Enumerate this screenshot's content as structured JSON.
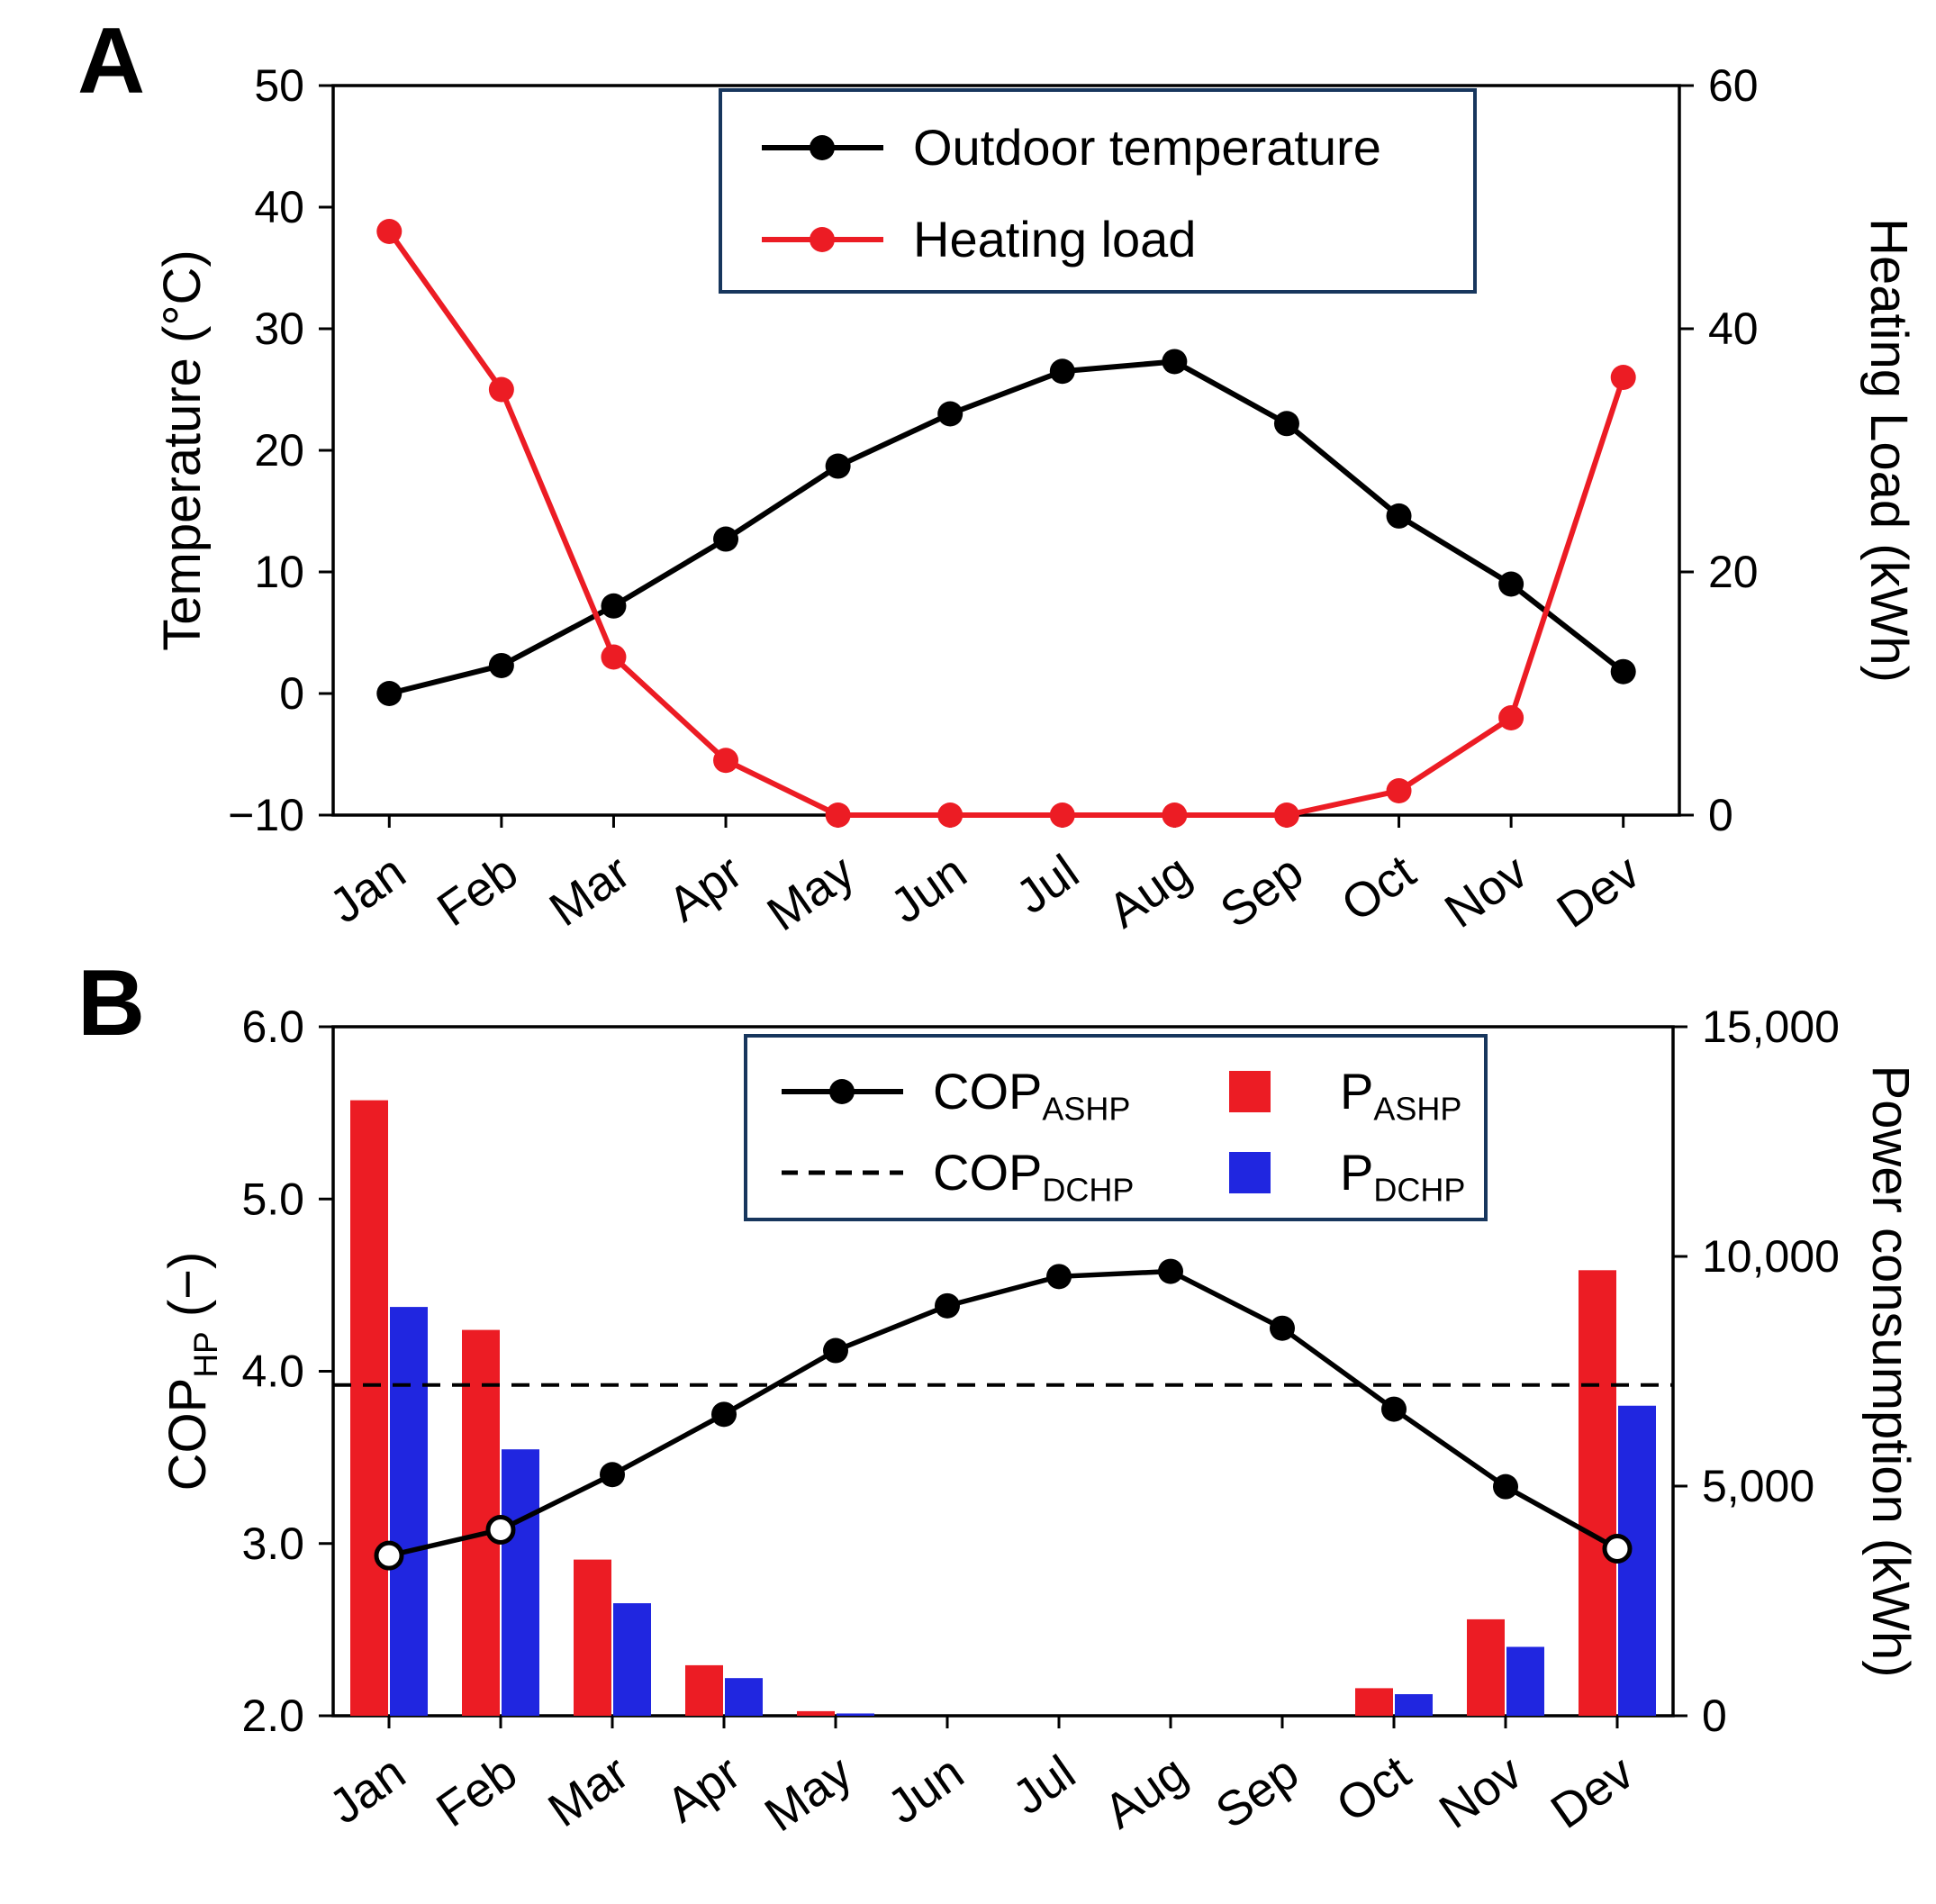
{
  "figure": {
    "background": "#ffffff",
    "legend_border": "#17365d"
  },
  "chart_data": [
    {
      "type": "line",
      "panel_label": "A",
      "categories": [
        "Jan",
        "Feb",
        "Mar",
        "Apr",
        "May",
        "Jun",
        "Jul",
        "Aug",
        "Sep",
        "Oct",
        "Nov",
        "Dev"
      ],
      "left_axis": {
        "title_parts": [
          {
            "t": "Temperature (°C)"
          }
        ],
        "min": -10,
        "max": 50,
        "ticks": [
          {
            "v": 50,
            "label": "50"
          },
          {
            "v": 40,
            "label": "40"
          },
          {
            "v": 30,
            "label": "30"
          },
          {
            "v": 20,
            "label": "20"
          },
          {
            "v": 10,
            "label": "10"
          },
          {
            "v": 0,
            "label": "0"
          },
          {
            "v": -10,
            "label": "−10"
          }
        ]
      },
      "right_axis": {
        "title_parts": [
          {
            "t": "Heating Load (kWh)"
          }
        ],
        "min": 0,
        "max": 60,
        "ticks": [
          {
            "v": 60,
            "label": "60"
          },
          {
            "v": 40,
            "label": "40"
          },
          {
            "v": 20,
            "label": "20"
          },
          {
            "v": 0,
            "label": "0"
          }
        ]
      },
      "series": [
        {
          "name": "Outdoor temperature",
          "axis": "left",
          "color": "#000000",
          "marker": "circle",
          "values": [
            0.0,
            2.3,
            7.2,
            12.7,
            18.7,
            23.0,
            26.5,
            27.3,
            22.2,
            14.6,
            9.0,
            1.8
          ]
        },
        {
          "name": "Heating load",
          "axis": "right",
          "color": "#ec1c24",
          "marker": "circle",
          "values": [
            48,
            35,
            13,
            4.5,
            0,
            0,
            0,
            0,
            0,
            2,
            8,
            36
          ]
        }
      ],
      "legend": [
        {
          "parts": [
            {
              "t": "Outdoor temperature"
            }
          ],
          "marker": "line-dot",
          "color": "#000000"
        },
        {
          "parts": [
            {
              "t": "Heating load"
            }
          ],
          "marker": "line-dot",
          "color": "#ec1c24"
        }
      ]
    },
    {
      "type": "combo",
      "panel_label": "B",
      "categories": [
        "Jan",
        "Feb",
        "Mar",
        "Apr",
        "May",
        "Jun",
        "Jul",
        "Aug",
        "Sep",
        "Oct",
        "Nov",
        "Dev"
      ],
      "left_axis": {
        "title_parts": [
          {
            "t": "COP"
          },
          {
            "t": "HP",
            "sub": true
          },
          {
            "t": " (−)"
          }
        ],
        "min": 2.0,
        "max": 6.0,
        "ticks": [
          {
            "v": 6.0,
            "label": "6.0"
          },
          {
            "v": 5.0,
            "label": "5.0"
          },
          {
            "v": 4.0,
            "label": "4.0"
          },
          {
            "v": 3.0,
            "label": "3.0"
          },
          {
            "v": 2.0,
            "label": "2.0"
          }
        ]
      },
      "right_axis": {
        "title_parts": [
          {
            "t": "Power consumption (kWh)"
          }
        ],
        "min": 0,
        "max": 15000,
        "ticks": [
          {
            "v": 15000,
            "label": "15,000"
          },
          {
            "v": 10000,
            "label": "10,000"
          },
          {
            "v": 5000,
            "label": "5,000"
          },
          {
            "v": 0,
            "label": "0"
          }
        ]
      },
      "bar_series": [
        {
          "name": "P_ASHP",
          "axis": "right",
          "color": "#ec1c24",
          "values": [
            13400,
            8400,
            3400,
            1100,
            100,
            0,
            0,
            0,
            0,
            600,
            2100,
            9700
          ]
        },
        {
          "name": "P_DCHP",
          "axis": "right",
          "color": "#2026e0",
          "values": [
            8900,
            5800,
            2450,
            820,
            50,
            0,
            0,
            0,
            0,
            470,
            1500,
            6750
          ]
        }
      ],
      "line_series": [
        {
          "name": "COP_ASHP",
          "axis": "left",
          "style": "solid",
          "marker": "circle",
          "color": "#000000",
          "values": [
            2.93,
            3.08,
            3.4,
            3.75,
            4.12,
            4.38,
            4.55,
            4.58,
            4.25,
            3.78,
            3.33,
            2.97
          ]
        },
        {
          "name": "COP_DCHP",
          "axis": "left",
          "style": "dashed",
          "color": "#000000",
          "constant": 3.92
        }
      ],
      "legend": [
        {
          "parts": [
            {
              "t": "COP"
            },
            {
              "t": "ASHP",
              "sub": true
            }
          ],
          "marker": "line-dot",
          "color": "#000000"
        },
        {
          "parts": [
            {
              "t": "COP"
            },
            {
              "t": "DCHP",
              "sub": true
            }
          ],
          "marker": "dashed",
          "color": "#000000"
        },
        {
          "parts": [
            {
              "t": "P"
            },
            {
              "t": "ASHP",
              "sub": true
            }
          ],
          "marker": "square",
          "color": "#ec1c24"
        },
        {
          "parts": [
            {
              "t": "P"
            },
            {
              "t": "DCHP",
              "sub": true
            }
          ],
          "marker": "square",
          "color": "#2026e0"
        }
      ]
    }
  ]
}
